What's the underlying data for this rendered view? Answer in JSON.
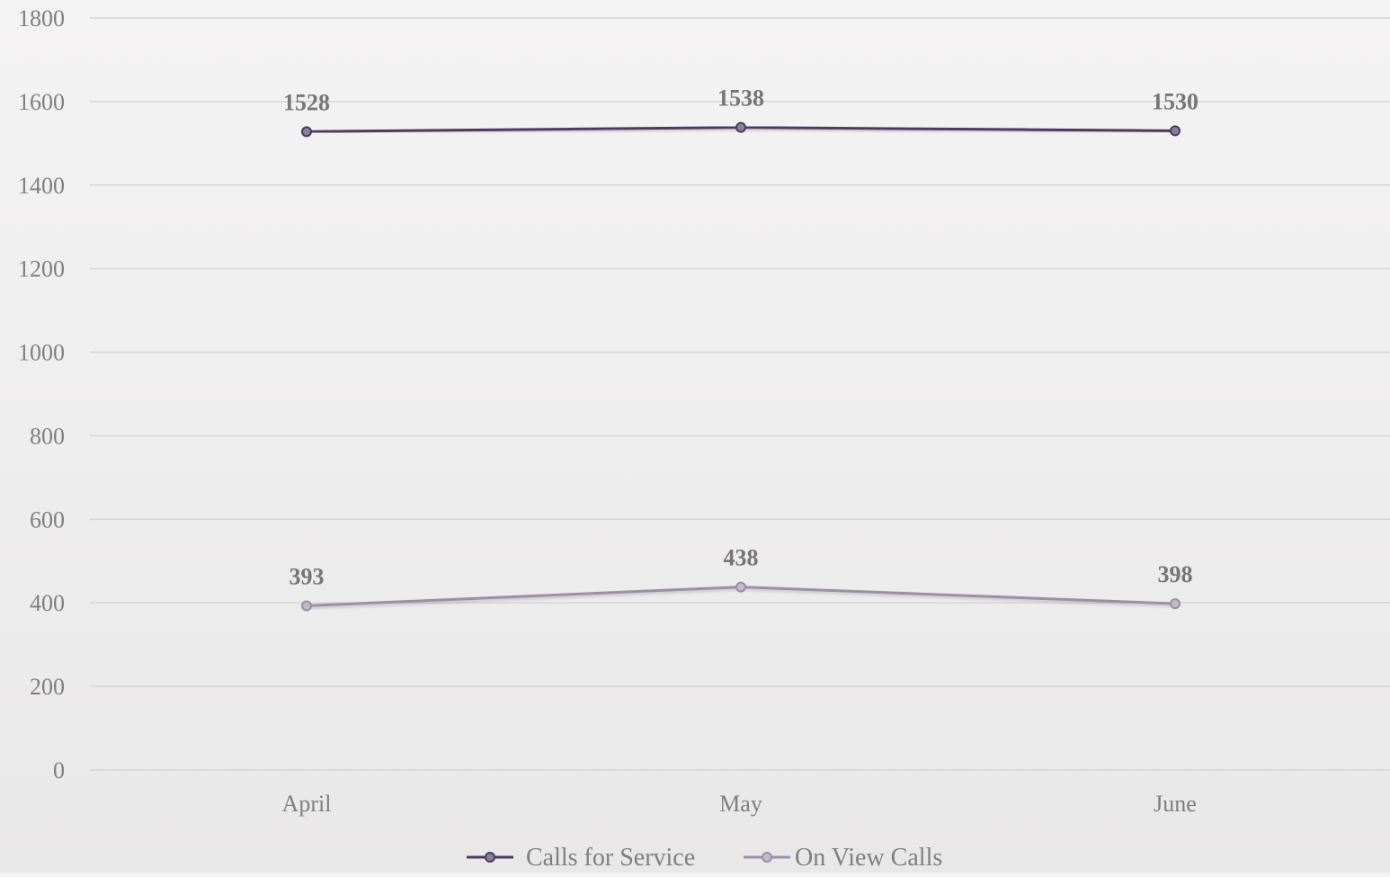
{
  "chart_data": {
    "type": "line",
    "title": "",
    "xlabel": "",
    "ylabel": "",
    "categories": [
      "April",
      "May",
      "June"
    ],
    "ylim": [
      0,
      1800
    ],
    "yticks": [
      0,
      200,
      400,
      600,
      800,
      1000,
      1200,
      1400,
      1600,
      1800
    ],
    "grid": true,
    "legend_position": "bottom",
    "series": [
      {
        "name": "Calls for Service",
        "values": [
          1528,
          1538,
          1530
        ],
        "color": "#4b3a5e"
      },
      {
        "name": "On View Calls",
        "values": [
          393,
          438,
          398
        ],
        "color": "#9a90a6"
      }
    ]
  }
}
